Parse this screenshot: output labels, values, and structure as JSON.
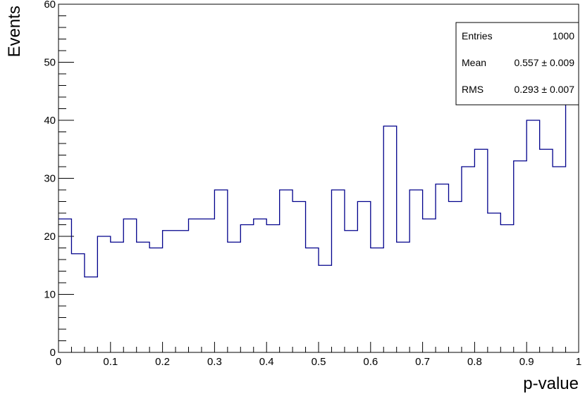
{
  "chart_data": {
    "type": "bar",
    "title": "",
    "xlabel": "p-value",
    "ylabel": "Events",
    "xlim": [
      0,
      1
    ],
    "ylim": [
      0,
      60
    ],
    "bin_width": 0.025,
    "x": [
      0,
      0.025,
      0.05,
      0.075,
      0.1,
      0.125,
      0.15,
      0.175,
      0.2,
      0.225,
      0.25,
      0.275,
      0.3,
      0.325,
      0.35,
      0.375,
      0.4,
      0.425,
      0.45,
      0.475,
      0.5,
      0.525,
      0.55,
      0.575,
      0.6,
      0.625,
      0.65,
      0.675,
      0.7,
      0.725,
      0.75,
      0.775,
      0.8,
      0.825,
      0.85,
      0.875,
      0.9,
      0.925,
      0.95,
      0.975
    ],
    "values": [
      23,
      17,
      13,
      20,
      19,
      23,
      19,
      18,
      21,
      21,
      23,
      23,
      28,
      19,
      22,
      23,
      22,
      28,
      26,
      18,
      15,
      28,
      21,
      26,
      18,
      39,
      19,
      28,
      23,
      29,
      26,
      32,
      35,
      24,
      22,
      33,
      40,
      35,
      32,
      49
    ],
    "x_ticks": [
      "0",
      "0.1",
      "0.2",
      "0.3",
      "0.4",
      "0.5",
      "0.6",
      "0.7",
      "0.8",
      "0.9",
      "1"
    ],
    "y_ticks": [
      "0",
      "10",
      "20",
      "30",
      "40",
      "50",
      "60"
    ],
    "line_color": "#00008b",
    "grid": false,
    "legend": "none",
    "stats_box": {
      "placement": "top-right",
      "rows": [
        {
          "label": "Entries",
          "value": "1000"
        },
        {
          "label": "Mean",
          "value": "0.557 ± 0.009"
        },
        {
          "label": "RMS",
          "value": "0.293 ± 0.007"
        }
      ]
    }
  }
}
